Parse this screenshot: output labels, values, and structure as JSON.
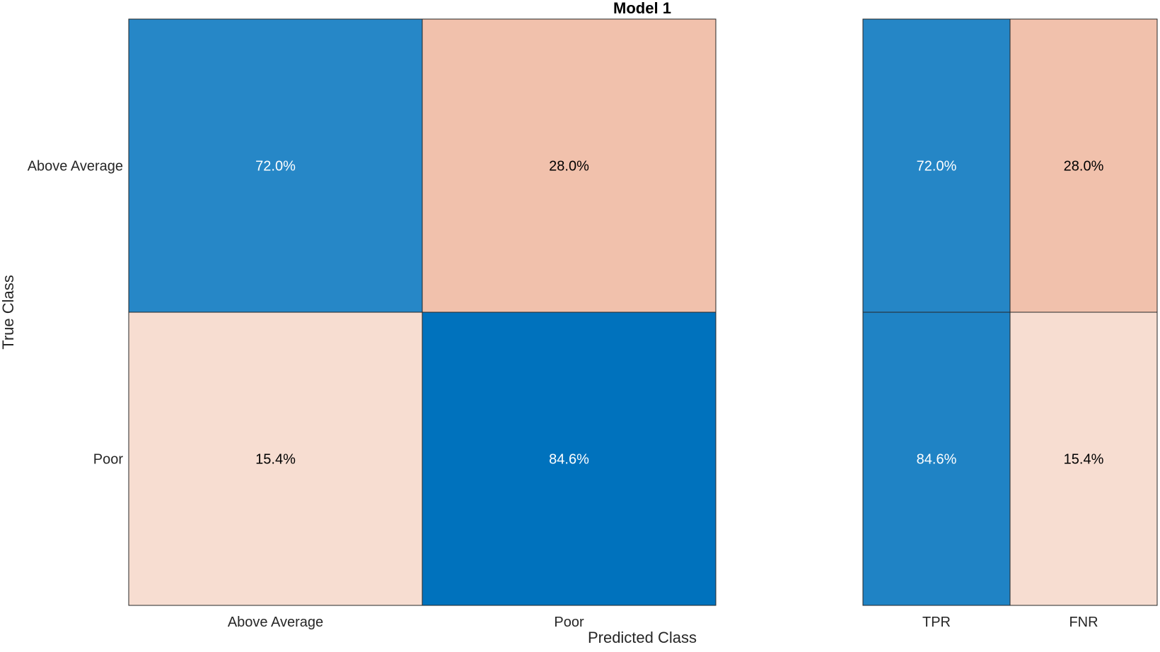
{
  "chart_data": {
    "type": "heatmap",
    "title": "Model 1",
    "xlabel": "Predicted Class",
    "ylabel": "True Class",
    "row_labels": [
      "Above Average",
      "Poor"
    ],
    "col_labels": [
      "Above Average",
      "Poor"
    ],
    "values": [
      [
        72.0,
        28.0
      ],
      [
        15.4,
        84.6
      ]
    ],
    "value_format": "percent",
    "row_summary": {
      "columns": [
        "TPR",
        "FNR"
      ],
      "values": [
        [
          72.0,
          28.0
        ],
        [
          84.6,
          15.4
        ]
      ]
    },
    "colors": {
      "correct_scale": [
        "#ffffff",
        "#0072bd"
      ],
      "incorrect_scale": [
        "#ffffff",
        "#d95319"
      ],
      "border": "#262626"
    },
    "grid": false,
    "legend": "none"
  }
}
